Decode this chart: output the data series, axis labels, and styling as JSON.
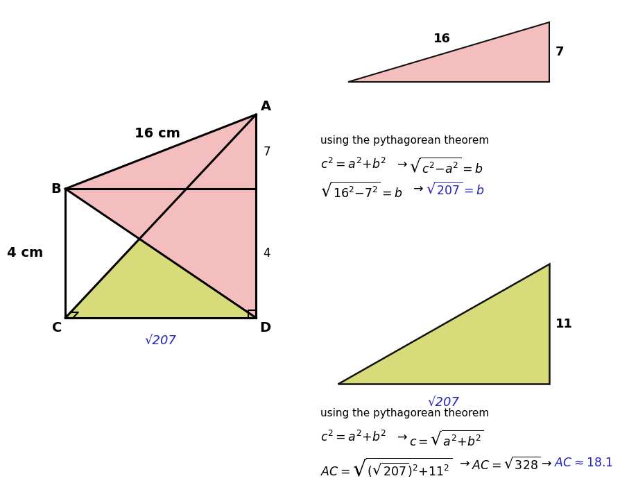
{
  "bg_color": "#ffffff",
  "pink_color": "#f5bebe",
  "yellow_color": "#d8db7a",
  "blue_color": "#2222bb",
  "black_color": "#111111",
  "vertex_A": "A",
  "vertex_B": "B",
  "vertex_C": "C",
  "vertex_D": "D",
  "label_16cm": "16 cm",
  "label_4cm": "4 cm",
  "label_sqrt207_trap": "√207",
  "label_7_right_upper": "7",
  "label_4_right_lower": "4",
  "small_tri1_top": "16",
  "small_tri1_right": "7",
  "small_tri2_right": "11",
  "small_tri2_bot": "√207",
  "thm1": "using the pythagorean theorem",
  "thm2": "using the pythagorean theorem"
}
